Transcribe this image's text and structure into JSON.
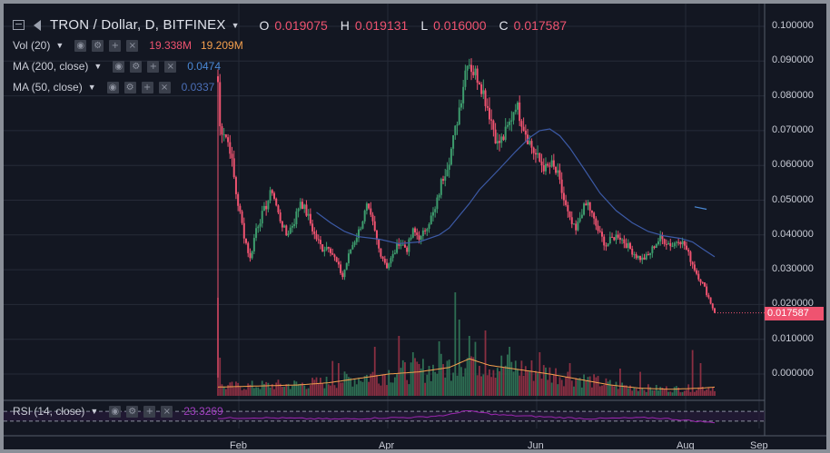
{
  "header": {
    "title": "TRON / Dollar, D, BITFINEX",
    "ohlc": [
      {
        "key": "O",
        "value": "0.019075"
      },
      {
        "key": "H",
        "value": "0.019131"
      },
      {
        "key": "L",
        "value": "0.016000"
      },
      {
        "key": "C",
        "value": "0.017587"
      }
    ]
  },
  "indicators": {
    "vol": {
      "label": "Vol (20)",
      "value1": "19.338M",
      "value2": "19.209M"
    },
    "ma200": {
      "label": "MA (200, close)",
      "value": "0.0474"
    },
    "ma50": {
      "label": "MA (50, close)",
      "value": "0.0337"
    },
    "rsi": {
      "label": "RSI (14, close)",
      "value": "23.3269"
    }
  },
  "icons": {
    "eye": "◉",
    "gear": "⚙",
    "plus": "+",
    "close": "×"
  },
  "price_label": "0.017587",
  "colors": {
    "up": "#3d9c6d",
    "down": "#ef5370",
    "ma50": "#3c5aa6",
    "ma200": "#4b8ad7",
    "vol_ma": "#f5a04e",
    "rsi": "#9c27b0",
    "bg": "#131722"
  },
  "chart_data": {
    "type": "candlestick",
    "y_axis": {
      "ticks": [
        "0.100000",
        "0.090000",
        "0.080000",
        "0.070000",
        "0.060000",
        "0.050000",
        "0.040000",
        "0.030000",
        "0.020000",
        "0.010000",
        "0.000000"
      ],
      "ylim": [
        -0.003,
        0.103
      ]
    },
    "x_axis": {
      "ticks": [
        "Feb",
        "Apr",
        "Jun",
        "Aug",
        "Sep"
      ]
    },
    "close_keyframes": [
      [
        0,
        0.084
      ],
      [
        1,
        0.071
      ],
      [
        3,
        0.07
      ],
      [
        6,
        0.065
      ],
      [
        9,
        0.052
      ],
      [
        13,
        0.04
      ],
      [
        16,
        0.033
      ],
      [
        19,
        0.042
      ],
      [
        23,
        0.047
      ],
      [
        27,
        0.053
      ],
      [
        30,
        0.046
      ],
      [
        34,
        0.04
      ],
      [
        38,
        0.044
      ],
      [
        41,
        0.05
      ],
      [
        45,
        0.045
      ],
      [
        48,
        0.04
      ],
      [
        52,
        0.036
      ],
      [
        55,
        0.037
      ],
      [
        59,
        0.032
      ],
      [
        62,
        0.028
      ],
      [
        66,
        0.036
      ],
      [
        70,
        0.041
      ],
      [
        74,
        0.048
      ],
      [
        77,
        0.043
      ],
      [
        80,
        0.036
      ],
      [
        84,
        0.031
      ],
      [
        87,
        0.034
      ],
      [
        90,
        0.038
      ],
      [
        94,
        0.036
      ],
      [
        97,
        0.041
      ],
      [
        101,
        0.039
      ],
      [
        104,
        0.043
      ],
      [
        108,
        0.047
      ],
      [
        111,
        0.055
      ],
      [
        115,
        0.062
      ],
      [
        118,
        0.07
      ],
      [
        121,
        0.08
      ],
      [
        124,
        0.091
      ],
      [
        127,
        0.087
      ],
      [
        130,
        0.085
      ],
      [
        133,
        0.079
      ],
      [
        136,
        0.073
      ],
      [
        139,
        0.066
      ],
      [
        142,
        0.068
      ],
      [
        145,
        0.072
      ],
      [
        148,
        0.078
      ],
      [
        151,
        0.073
      ],
      [
        154,
        0.068
      ],
      [
        157,
        0.064
      ],
      [
        160,
        0.061
      ],
      [
        163,
        0.059
      ],
      [
        166,
        0.06
      ],
      [
        169,
        0.057
      ],
      [
        172,
        0.05
      ],
      [
        175,
        0.044
      ],
      [
        178,
        0.041
      ],
      [
        181,
        0.047
      ],
      [
        184,
        0.049
      ],
      [
        187,
        0.044
      ],
      [
        190,
        0.04
      ],
      [
        193,
        0.037
      ],
      [
        196,
        0.039
      ],
      [
        199,
        0.04
      ],
      [
        202,
        0.038
      ],
      [
        205,
        0.036
      ],
      [
        208,
        0.034
      ],
      [
        211,
        0.033
      ],
      [
        214,
        0.034
      ],
      [
        217,
        0.037
      ],
      [
        220,
        0.039
      ],
      [
        223,
        0.038
      ],
      [
        226,
        0.037
      ],
      [
        229,
        0.039
      ],
      [
        232,
        0.037
      ],
      [
        235,
        0.033
      ],
      [
        238,
        0.029
      ],
      [
        241,
        0.026
      ],
      [
        244,
        0.022
      ],
      [
        247,
        0.0176
      ]
    ],
    "ma50": [
      [
        49,
        0.0465
      ],
      [
        56,
        0.0435
      ],
      [
        63,
        0.041
      ],
      [
        70,
        0.0395
      ],
      [
        80,
        0.0388
      ],
      [
        90,
        0.0375
      ],
      [
        100,
        0.038
      ],
      [
        110,
        0.04
      ],
      [
        115,
        0.042
      ],
      [
        120,
        0.0455
      ],
      [
        125,
        0.049
      ],
      [
        130,
        0.053
      ],
      [
        140,
        0.059
      ],
      [
        148,
        0.064
      ],
      [
        155,
        0.068
      ],
      [
        160,
        0.07
      ],
      [
        165,
        0.0705
      ],
      [
        170,
        0.0685
      ],
      [
        175,
        0.065
      ],
      [
        182,
        0.059
      ],
      [
        190,
        0.052
      ],
      [
        198,
        0.047
      ],
      [
        206,
        0.0435
      ],
      [
        214,
        0.041
      ],
      [
        222,
        0.0397
      ],
      [
        230,
        0.039
      ],
      [
        236,
        0.038
      ],
      [
        241,
        0.036
      ],
      [
        247,
        0.0337
      ]
    ],
    "ma200": [
      [
        237,
        0.0481
      ],
      [
        243,
        0.0474
      ]
    ],
    "volume_ma": [
      [
        0,
        0.08
      ],
      [
        20,
        0.09
      ],
      [
        40,
        0.1
      ],
      [
        55,
        0.12
      ],
      [
        70,
        0.16
      ],
      [
        85,
        0.2
      ],
      [
        100,
        0.22
      ],
      [
        115,
        0.26
      ],
      [
        125,
        0.34
      ],
      [
        135,
        0.28
      ],
      [
        150,
        0.24
      ],
      [
        165,
        0.2
      ],
      [
        180,
        0.15
      ],
      [
        195,
        0.1
      ],
      [
        210,
        0.07
      ],
      [
        225,
        0.06
      ],
      [
        240,
        0.07
      ],
      [
        247,
        0.08
      ]
    ],
    "volume_spikes": [
      [
        0,
        0.9
      ],
      [
        1,
        0.35
      ],
      [
        57,
        0.32
      ],
      [
        60,
        0.3
      ],
      [
        78,
        0.45
      ],
      [
        90,
        0.55
      ],
      [
        97,
        0.4
      ],
      [
        110,
        0.5
      ],
      [
        118,
        0.95
      ],
      [
        120,
        0.7
      ],
      [
        125,
        0.55
      ],
      [
        133,
        0.6
      ],
      [
        145,
        0.45
      ],
      [
        160,
        0.4
      ],
      [
        175,
        0.3
      ],
      [
        200,
        0.25
      ],
      [
        210,
        0.22
      ],
      [
        236,
        0.42
      ],
      [
        240,
        0.3
      ]
    ],
    "rsi": {
      "lines": [
        70,
        30
      ],
      "values": [
        [
          0,
          42
        ],
        [
          20,
          44
        ],
        [
          40,
          41
        ],
        [
          60,
          38
        ],
        [
          80,
          43
        ],
        [
          100,
          46
        ],
        [
          115,
          55
        ],
        [
          122,
          72
        ],
        [
          128,
          68
        ],
        [
          140,
          55
        ],
        [
          155,
          50
        ],
        [
          170,
          45
        ],
        [
          185,
          40
        ],
        [
          200,
          42
        ],
        [
          215,
          44
        ],
        [
          225,
          39
        ],
        [
          235,
          32
        ],
        [
          247,
          23.3
        ]
      ]
    }
  }
}
